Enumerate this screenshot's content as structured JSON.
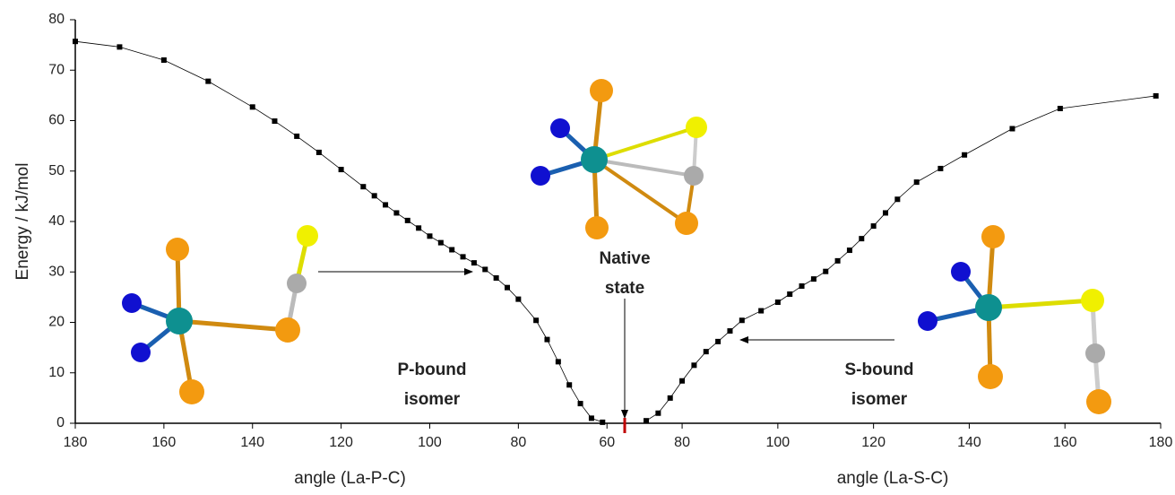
{
  "chart_data": {
    "type": "line",
    "y_label": "Energy / kJ/mol",
    "ylim": [
      0,
      80
    ],
    "yticks": [
      0,
      10,
      20,
      30,
      40,
      50,
      60,
      70,
      80
    ],
    "axes": [
      {
        "x_label": "angle (La-P-C)",
        "xlim": [
          180,
          56
        ],
        "xticks": [
          180,
          160,
          140,
          120,
          100,
          80,
          60
        ],
        "series": {
          "color": "#000000",
          "x": [
            180,
            170,
            160,
            150,
            140,
            135,
            130,
            125,
            120,
            115,
            112.5,
            110,
            107.5,
            105,
            102.5,
            100,
            97.5,
            95,
            92.5,
            90,
            87.5,
            85,
            82.5,
            80,
            76,
            73.5,
            71,
            68.5,
            66,
            63.5,
            61
          ],
          "values": [
            75.7,
            74.6,
            72,
            67.8,
            62.7,
            59.9,
            56.9,
            53.7,
            50.3,
            46.9,
            45.1,
            43.3,
            41.7,
            40.2,
            38.7,
            37.1,
            35.8,
            34.4,
            33,
            31.8,
            30.5,
            28.8,
            26.9,
            24.6,
            20.4,
            16.6,
            12.2,
            7.6,
            3.9,
            1,
            0.2
          ]
        }
      },
      {
        "x_label": "angle (La-S-C)",
        "xlim": [
          68,
          180
        ],
        "xticks": [
          80,
          100,
          120,
          140,
          160,
          180
        ],
        "series": {
          "color": "#000000",
          "x": [
            72.5,
            75,
            77.5,
            80,
            82.5,
            85,
            87.5,
            90,
            92.5,
            96.5,
            100,
            102.5,
            105,
            107.5,
            110,
            112.5,
            115,
            117.5,
            120,
            122.5,
            125,
            129,
            134,
            139,
            149,
            159,
            179
          ],
          "values": [
            0.5,
            2,
            5,
            8.4,
            11.5,
            14.2,
            16.2,
            18.3,
            20.4,
            22.3,
            24,
            25.6,
            27.2,
            28.6,
            30.1,
            32.2,
            34.3,
            36.6,
            39.1,
            41.7,
            44.4,
            47.8,
            50.5,
            53.2,
            58.4,
            62.4,
            64.9
          ]
        }
      }
    ],
    "annotations": [
      [
        "Native",
        "state"
      ],
      [
        "P-bound",
        "isomer"
      ],
      [
        "S-bound",
        "isomer"
      ]
    ]
  }
}
